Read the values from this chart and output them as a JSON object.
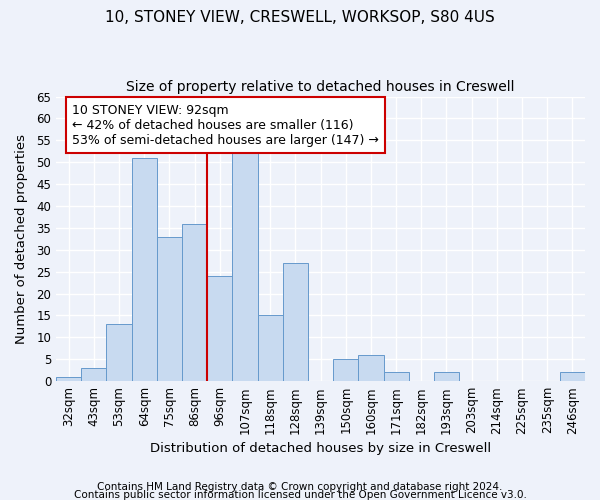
{
  "title_line1": "10, STONEY VIEW, CRESWELL, WORKSOP, S80 4US",
  "title_line2": "Size of property relative to detached houses in Creswell",
  "xlabel": "Distribution of detached houses by size in Creswell",
  "ylabel": "Number of detached properties",
  "categories": [
    "32sqm",
    "43sqm",
    "53sqm",
    "64sqm",
    "75sqm",
    "86sqm",
    "96sqm",
    "107sqm",
    "118sqm",
    "128sqm",
    "139sqm",
    "150sqm",
    "160sqm",
    "171sqm",
    "182sqm",
    "193sqm",
    "203sqm",
    "214sqm",
    "225sqm",
    "235sqm",
    "246sqm"
  ],
  "values": [
    1,
    3,
    13,
    51,
    33,
    36,
    24,
    54,
    15,
    27,
    0,
    5,
    6,
    2,
    0,
    2,
    0,
    0,
    0,
    0,
    2
  ],
  "bar_color": "#c8daf0",
  "bar_edge_color": "#6699cc",
  "vline_x_index": 5.5,
  "vline_color": "#cc0000",
  "annotation_text": "10 STONEY VIEW: 92sqm\n← 42% of detached houses are smaller (116)\n53% of semi-detached houses are larger (147) →",
  "annotation_box_color": "#ffffff",
  "annotation_box_edge_color": "#cc0000",
  "ylim": [
    0,
    65
  ],
  "yticks": [
    0,
    5,
    10,
    15,
    20,
    25,
    30,
    35,
    40,
    45,
    50,
    55,
    60,
    65
  ],
  "footer_line1": "Contains HM Land Registry data © Crown copyright and database right 2024.",
  "footer_line2": "Contains public sector information licensed under the Open Government Licence v3.0.",
  "background_color": "#eef2fa",
  "grid_color": "#ffffff",
  "title_fontsize": 11,
  "subtitle_fontsize": 10,
  "axis_label_fontsize": 9.5,
  "tick_fontsize": 8.5,
  "footer_fontsize": 7.5,
  "annotation_fontsize": 9
}
